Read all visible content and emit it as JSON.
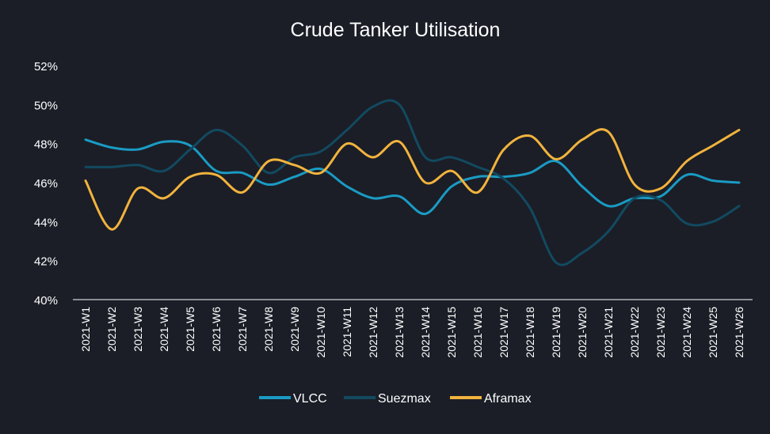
{
  "chart_data": {
    "type": "line",
    "title": "Crude Tanker Utilisation",
    "xlabel": "",
    "ylabel": "",
    "ylim": [
      40,
      52
    ],
    "yticks": [
      40,
      42,
      44,
      46,
      48,
      50,
      52
    ],
    "ytick_format": "%",
    "grid": false,
    "legend_position": "bottom",
    "categories": [
      "2021-W1",
      "2021-W2",
      "2021-W3",
      "2021-W4",
      "2021-W5",
      "2021-W6",
      "2021-W7",
      "2021-W8",
      "2021-W9",
      "2021-W10",
      "2021-W11",
      "2021-W12",
      "2021-W13",
      "2021-W14",
      "2021-W15",
      "2021-W16",
      "2021-W17",
      "2021-W18",
      "2021-W19",
      "2021-W20",
      "2021-W21",
      "2021-W22",
      "2021-W23",
      "2021-W24",
      "2021-W25",
      "2021-W26"
    ],
    "series": [
      {
        "name": "VLCC",
        "color": "#1a9bc4",
        "values": [
          48.2,
          47.8,
          47.7,
          48.1,
          47.9,
          46.6,
          46.5,
          45.9,
          46.3,
          46.7,
          45.8,
          45.2,
          45.3,
          44.4,
          45.8,
          46.3,
          46.3,
          46.5,
          47.1,
          45.8,
          44.8,
          45.2,
          45.3,
          46.4,
          46.1,
          46.0
        ]
      },
      {
        "name": "Suezmax",
        "color": "#124a60",
        "values": [
          46.8,
          46.8,
          46.9,
          46.6,
          47.7,
          48.7,
          47.9,
          46.5,
          47.3,
          47.6,
          48.7,
          49.9,
          50.0,
          47.3,
          47.3,
          46.8,
          46.2,
          44.7,
          41.9,
          42.4,
          43.5,
          45.2,
          45.1,
          43.9,
          44.0,
          44.8
        ]
      },
      {
        "name": "Aframax",
        "color": "#f2b33d",
        "values": [
          46.1,
          43.6,
          45.7,
          45.2,
          46.3,
          46.4,
          45.5,
          47.1,
          46.9,
          46.5,
          48.0,
          47.3,
          48.1,
          46.0,
          46.6,
          45.5,
          47.7,
          48.4,
          47.2,
          48.2,
          48.6,
          45.9,
          45.7,
          47.1,
          47.9,
          48.7
        ]
      }
    ]
  }
}
